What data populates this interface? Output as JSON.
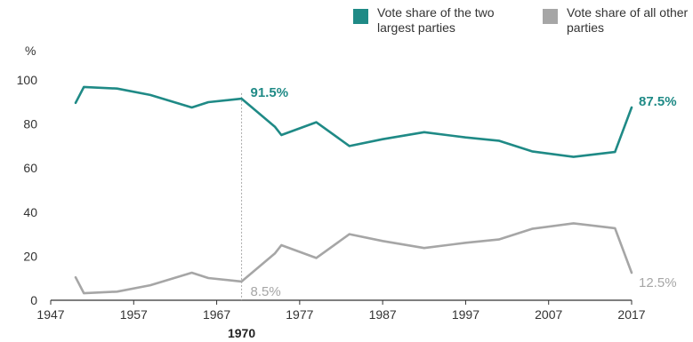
{
  "chart_data": {
    "type": "line",
    "ylabel": "%",
    "ylim": [
      0,
      100
    ],
    "xlim": [
      1947,
      2017
    ],
    "yticks": [
      0,
      20,
      40,
      60,
      80,
      100
    ],
    "xticks": [
      1947,
      1957,
      1967,
      1977,
      1987,
      1997,
      2007,
      2017
    ],
    "grid": false,
    "legend_position": "top-right",
    "colors": {
      "two_largest": "#1f8a86",
      "other": "#a6a6a6",
      "axis": "#333333",
      "refline": "#aaaaaa"
    },
    "series": [
      {
        "name": "Vote share of the two largest parties",
        "x": [
          1950,
          1951,
          1955,
          1959,
          1964,
          1966,
          1970,
          1974,
          1974.8,
          1979,
          1983,
          1987,
          1992,
          1997,
          2001,
          2005,
          2010,
          2015,
          2017
        ],
        "y": [
          89.6,
          96.8,
          96.1,
          93.2,
          87.5,
          89.9,
          91.5,
          78.8,
          75.0,
          80.8,
          70.0,
          73.1,
          76.3,
          73.9,
          72.4,
          67.6,
          65.1,
          67.3,
          87.5
        ]
      },
      {
        "name": "Vote share of all other parties",
        "x": [
          1950,
          1951,
          1955,
          1959,
          1964,
          1966,
          1970,
          1974,
          1974.8,
          1979,
          1983,
          1987,
          1992,
          1997,
          2001,
          2005,
          2010,
          2015,
          2017
        ],
        "y": [
          10.4,
          3.2,
          3.9,
          6.8,
          12.5,
          10.1,
          8.5,
          21.2,
          25.0,
          19.2,
          30.0,
          26.9,
          23.7,
          26.1,
          27.6,
          32.4,
          34.9,
          32.7,
          12.5
        ]
      }
    ],
    "annotations": [
      {
        "series": 0,
        "x": 1970,
        "y": 91.5,
        "text": "91.5%"
      },
      {
        "series": 0,
        "x": 2017,
        "y": 87.5,
        "text": "87.5%"
      },
      {
        "series": 1,
        "x": 1970,
        "y": 8.5,
        "text": "8.5%"
      },
      {
        "series": 1,
        "x": 2017,
        "y": 12.5,
        "text": "12.5%"
      }
    ],
    "reference_line": {
      "x": 1970,
      "label": "1970"
    }
  }
}
